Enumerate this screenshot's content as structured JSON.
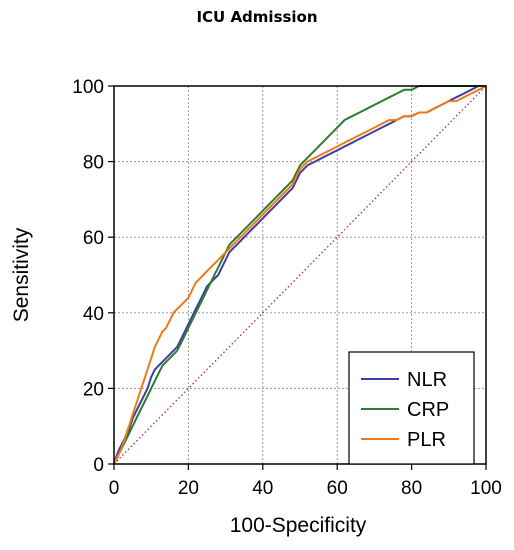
{
  "chart_data": {
    "type": "line",
    "title": "ICU Admission",
    "xlabel": "100-Specificity",
    "ylabel": "Sensitivity",
    "xlim": [
      0,
      100
    ],
    "ylim": [
      0,
      100
    ],
    "xticks": [
      0,
      20,
      40,
      60,
      80,
      100
    ],
    "yticks": [
      0,
      20,
      40,
      60,
      80,
      100
    ],
    "grid": true,
    "legend_position": "bottom-right",
    "reference_line": {
      "x": [
        0,
        100
      ],
      "y": [
        0,
        100
      ],
      "style": "dotted",
      "color": "#a0304a"
    },
    "series": [
      {
        "name": "NLR",
        "color": "#3d3fa8",
        "x": [
          0,
          1,
          2,
          3,
          4,
          5,
          6,
          7,
          8,
          9,
          10,
          11,
          12,
          13,
          14,
          15,
          16,
          17,
          18,
          19,
          20,
          21,
          22,
          23,
          24,
          25,
          26,
          27,
          28,
          29,
          30,
          31,
          32,
          33,
          34,
          35,
          36,
          37,
          38,
          39,
          40,
          41,
          42,
          43,
          44,
          45,
          46,
          47,
          48,
          49,
          50,
          52,
          54,
          56,
          58,
          60,
          62,
          64,
          66,
          68,
          70,
          72,
          74,
          76,
          78,
          80,
          82,
          84,
          86,
          88,
          90,
          92,
          94,
          96,
          98,
          100
        ],
        "y": [
          0,
          3,
          5,
          7,
          9,
          12,
          14,
          16,
          18,
          20,
          23,
          25,
          26,
          27,
          28,
          29,
          30,
          31,
          33,
          35,
          37,
          39,
          41,
          43,
          45,
          47,
          48,
          49,
          50,
          52,
          54,
          56,
          57,
          58,
          59,
          60,
          61,
          62,
          63,
          64,
          65,
          66,
          67,
          68,
          69,
          70,
          71,
          72,
          73,
          75,
          77,
          79,
          80,
          81,
          82,
          83,
          84,
          85,
          86,
          87,
          88,
          89,
          90,
          91,
          92,
          92,
          93,
          93,
          94,
          95,
          96,
          97,
          98,
          99,
          100,
          100
        ]
      },
      {
        "name": "CRP",
        "color": "#2e7d2e",
        "x": [
          0,
          1,
          2,
          3,
          4,
          5,
          6,
          7,
          8,
          9,
          10,
          11,
          12,
          13,
          14,
          15,
          16,
          17,
          18,
          19,
          20,
          21,
          22,
          23,
          24,
          25,
          26,
          27,
          28,
          29,
          30,
          31,
          32,
          33,
          34,
          35,
          36,
          37,
          38,
          39,
          40,
          41,
          42,
          43,
          44,
          45,
          46,
          47,
          48,
          49,
          50,
          52,
          54,
          56,
          58,
          60,
          62,
          64,
          66,
          68,
          70,
          72,
          74,
          76,
          78,
          80,
          82,
          84,
          86,
          88,
          90,
          92,
          94,
          96,
          98,
          100
        ],
        "y": [
          0,
          2,
          4,
          6,
          8,
          10,
          12,
          14,
          16,
          18,
          20,
          22,
          24,
          26,
          27,
          28,
          29,
          30,
          32,
          34,
          36,
          38,
          40,
          42,
          44,
          46,
          48,
          50,
          52,
          54,
          56,
          58,
          59,
          60,
          61,
          62,
          63,
          64,
          65,
          66,
          67,
          68,
          69,
          70,
          71,
          72,
          73,
          74,
          75,
          77,
          79,
          81,
          83,
          85,
          87,
          89,
          91,
          92,
          93,
          94,
          95,
          96,
          97,
          98,
          99,
          99,
          100,
          100,
          100,
          100,
          100,
          100,
          100,
          100,
          100,
          100
        ]
      },
      {
        "name": "PLR",
        "color": "#f07a1a",
        "x": [
          0,
          1,
          2,
          3,
          4,
          5,
          6,
          7,
          8,
          9,
          10,
          11,
          12,
          13,
          14,
          15,
          16,
          17,
          18,
          19,
          20,
          21,
          22,
          23,
          24,
          25,
          26,
          27,
          28,
          29,
          30,
          31,
          32,
          33,
          34,
          35,
          36,
          37,
          38,
          39,
          40,
          41,
          42,
          43,
          44,
          45,
          46,
          47,
          48,
          49,
          50,
          52,
          54,
          56,
          58,
          60,
          62,
          64,
          66,
          68,
          70,
          72,
          74,
          76,
          78,
          80,
          82,
          84,
          86,
          88,
          90,
          92,
          94,
          96,
          98,
          100
        ],
        "y": [
          0,
          2,
          4,
          7,
          10,
          13,
          16,
          19,
          22,
          25,
          28,
          31,
          33,
          35,
          36,
          38,
          40,
          41,
          42,
          43,
          44,
          46,
          48,
          49,
          50,
          51,
          52,
          53,
          54,
          55,
          56,
          57,
          58,
          59,
          60,
          61,
          62,
          63,
          64,
          65,
          66,
          67,
          68,
          69,
          70,
          71,
          72,
          73,
          74,
          76,
          78,
          80,
          81,
          82,
          83,
          84,
          85,
          86,
          87,
          88,
          89,
          90,
          91,
          91,
          92,
          92,
          93,
          93,
          94,
          95,
          96,
          96,
          97,
          98,
          99,
          100
        ]
      }
    ]
  }
}
